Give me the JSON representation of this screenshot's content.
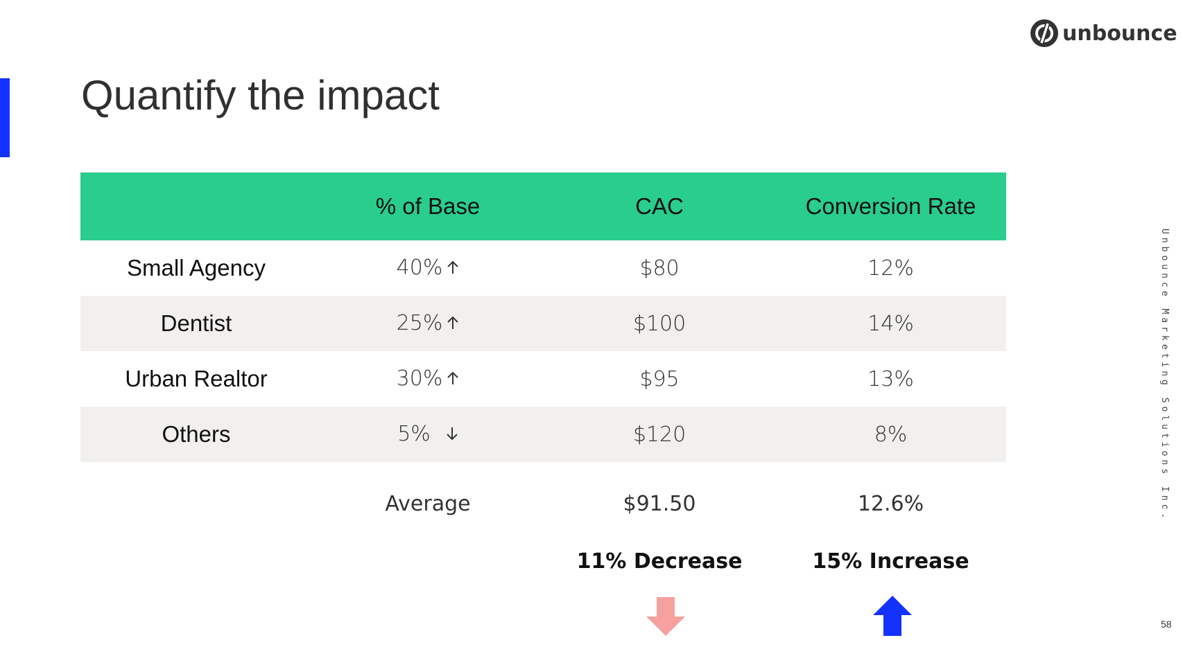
{
  "slide": {
    "title": "Quantify the impact",
    "brand": "unbounce",
    "side_text": "Unbounce Marketing Solutions Inc.",
    "page_number": "58",
    "accent_color": "#1432ff",
    "header_color": "#29cd8c"
  },
  "table": {
    "headers": [
      "",
      "% of Base",
      "CAC",
      "Conversion Rate"
    ],
    "rows": [
      {
        "segment": "Small Agency",
        "base": "40%",
        "trend": "up",
        "cac": "$80",
        "conversion": "12%"
      },
      {
        "segment": "Dentist",
        "base": "25%",
        "trend": "up",
        "cac": "$100",
        "conversion": "14%"
      },
      {
        "segment": "Urban Realtor",
        "base": "30%",
        "trend": "up",
        "cac": "$95",
        "conversion": "13%"
      },
      {
        "segment": "Others",
        "base": "5%",
        "trend": "down",
        "cac": "$120",
        "conversion": "8%"
      }
    ]
  },
  "average": {
    "label": "Average",
    "cac": "$91.50",
    "conversion": "12.6%"
  },
  "impact": {
    "cac": {
      "text": "11% Decrease",
      "direction": "down",
      "color": "#f7a0a0"
    },
    "conversion": {
      "text": "15% Increase",
      "direction": "up",
      "color": "#1432ff"
    }
  }
}
